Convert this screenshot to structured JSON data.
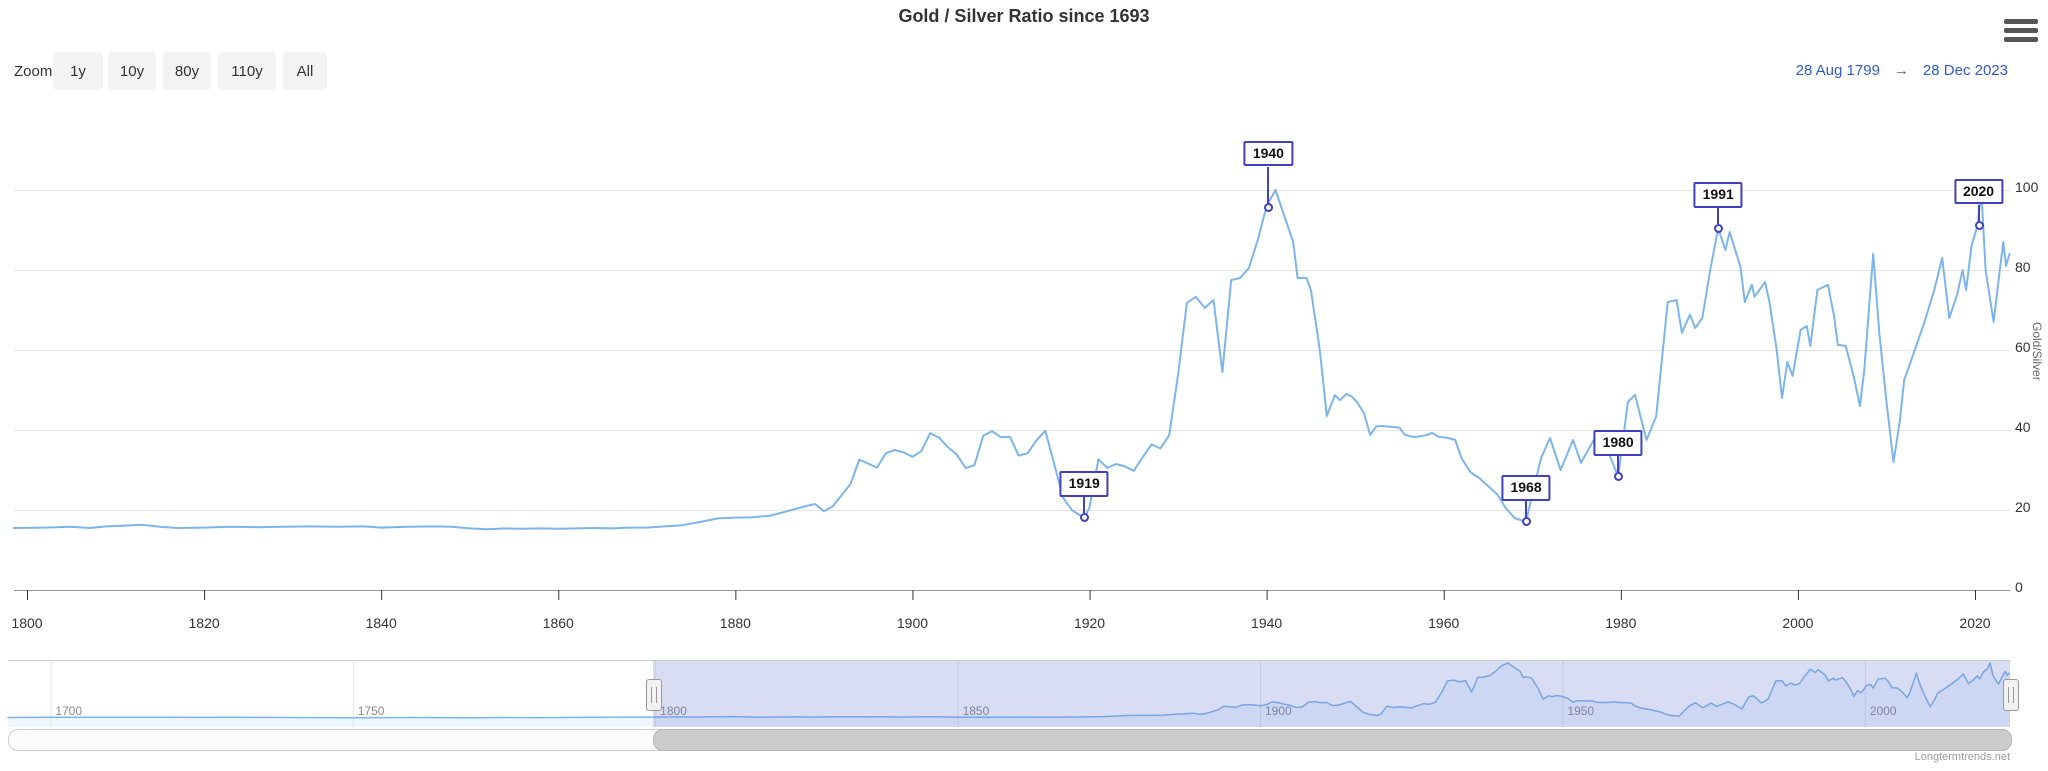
{
  "header": {
    "title": "Gold / Silver Ratio since 1693"
  },
  "range_selector": {
    "zoom_label": "Zoom",
    "buttons": [
      "1y",
      "10y",
      "80y",
      "110y",
      "All"
    ],
    "from_date": "28 Aug 1799",
    "arrow": "→",
    "to_date": "28 Dec 2023"
  },
  "watermark": "Longtermtrends.net",
  "colors": {
    "series": "#7cb5ec",
    "flag": "#4040c0",
    "grid": "#e6e6e6",
    "axis_line": "#999999",
    "nav_mask": "rgba(102,120,210,0.25)"
  },
  "chart_data": {
    "type": "line",
    "title": "Gold / Silver Ratio since 1693",
    "xlabel": "",
    "ylabel": "Gold/Silver",
    "legend": "none",
    "grid": "horizontal",
    "yaxis": {
      "min": 0,
      "max": 122,
      "ticks": [
        0,
        20,
        40,
        60,
        80,
        100
      ],
      "position": "right"
    },
    "xaxis": {
      "min": 1798.5,
      "max": 2024,
      "ticks": [
        1800,
        1820,
        1840,
        1860,
        1880,
        1900,
        1920,
        1940,
        1960,
        1980,
        2000,
        2020
      ]
    },
    "series": [
      {
        "name": "Gold/Silver Ratio",
        "points": [
          [
            1693,
            14.8
          ],
          [
            1700,
            15.1
          ],
          [
            1705,
            15.3
          ],
          [
            1710,
            15.2
          ],
          [
            1715,
            15.1
          ],
          [
            1720,
            15.2
          ],
          [
            1725,
            15.0
          ],
          [
            1730,
            15.1
          ],
          [
            1735,
            15.0
          ],
          [
            1740,
            14.9
          ],
          [
            1745,
            14.7
          ],
          [
            1750,
            14.6
          ],
          [
            1755,
            14.7
          ],
          [
            1760,
            14.9
          ],
          [
            1765,
            14.7
          ],
          [
            1770,
            14.6
          ],
          [
            1775,
            14.8
          ],
          [
            1780,
            14.7
          ],
          [
            1785,
            14.9
          ],
          [
            1790,
            15.1
          ],
          [
            1795,
            15.4
          ],
          [
            1798.5,
            15.5
          ],
          [
            1802,
            15.6
          ],
          [
            1805,
            15.8
          ],
          [
            1807,
            15.5
          ],
          [
            1809,
            15.9
          ],
          [
            1811,
            16.1
          ],
          [
            1813,
            16.3
          ],
          [
            1815,
            15.8
          ],
          [
            1817,
            15.5
          ],
          [
            1820,
            15.6
          ],
          [
            1823,
            15.8
          ],
          [
            1826,
            15.7
          ],
          [
            1829,
            15.8
          ],
          [
            1832,
            15.9
          ],
          [
            1835,
            15.8
          ],
          [
            1838,
            15.9
          ],
          [
            1840,
            15.6
          ],
          [
            1843,
            15.8
          ],
          [
            1846,
            15.9
          ],
          [
            1848,
            15.8
          ],
          [
            1850,
            15.4
          ],
          [
            1852,
            15.2
          ],
          [
            1854,
            15.4
          ],
          [
            1856,
            15.3
          ],
          [
            1858,
            15.4
          ],
          [
            1860,
            15.3
          ],
          [
            1862,
            15.4
          ],
          [
            1864,
            15.5
          ],
          [
            1866,
            15.4
          ],
          [
            1868,
            15.6
          ],
          [
            1870,
            15.6
          ],
          [
            1872,
            15.9
          ],
          [
            1874,
            16.2
          ],
          [
            1876,
            17.0
          ],
          [
            1878,
            17.9
          ],
          [
            1880,
            18.1
          ],
          [
            1882,
            18.2
          ],
          [
            1884,
            18.6
          ],
          [
            1886,
            19.8
          ],
          [
            1888,
            21.0
          ],
          [
            1889,
            21.5
          ],
          [
            1890,
            19.7
          ],
          [
            1891,
            20.9
          ],
          [
            1892,
            23.7
          ],
          [
            1893,
            26.5
          ],
          [
            1894,
            32.6
          ],
          [
            1895,
            31.6
          ],
          [
            1896,
            30.6
          ],
          [
            1897,
            34.2
          ],
          [
            1898,
            35.0
          ],
          [
            1899,
            34.4
          ],
          [
            1900,
            33.3
          ],
          [
            1901,
            34.7
          ],
          [
            1902,
            39.2
          ],
          [
            1903,
            38.1
          ],
          [
            1904,
            35.7
          ],
          [
            1905,
            33.9
          ],
          [
            1906,
            30.5
          ],
          [
            1907,
            31.2
          ],
          [
            1908,
            38.6
          ],
          [
            1909,
            39.7
          ],
          [
            1910,
            38.2
          ],
          [
            1911,
            38.3
          ],
          [
            1912,
            33.6
          ],
          [
            1913,
            34.2
          ],
          [
            1914,
            37.4
          ],
          [
            1915,
            39.8
          ],
          [
            1916,
            31.6
          ],
          [
            1917,
            23.1
          ],
          [
            1918,
            20.0
          ],
          [
            1919.4,
            18.0
          ],
          [
            1920,
            20.6
          ],
          [
            1921,
            32.7
          ],
          [
            1922,
            30.5
          ],
          [
            1923,
            31.5
          ],
          [
            1924,
            30.9
          ],
          [
            1925,
            29.8
          ],
          [
            1926,
            33.2
          ],
          [
            1927,
            36.4
          ],
          [
            1928,
            35.4
          ],
          [
            1929,
            38.7
          ],
          [
            1930,
            53.9
          ],
          [
            1931,
            71.8
          ],
          [
            1932,
            73.3
          ],
          [
            1933,
            70.5
          ],
          [
            1934,
            72.5
          ],
          [
            1935,
            54.5
          ],
          [
            1936,
            77.5
          ],
          [
            1937,
            78.0
          ],
          [
            1938,
            80.5
          ],
          [
            1939,
            87.5
          ],
          [
            1940,
            96.0
          ],
          [
            1941,
            100.0
          ],
          [
            1942,
            93.5
          ],
          [
            1943,
            87.0
          ],
          [
            1943.5,
            78.0
          ],
          [
            1944.5,
            78.0
          ],
          [
            1945,
            75.0
          ],
          [
            1946,
            60.0
          ],
          [
            1946.8,
            43.5
          ],
          [
            1947.7,
            48.7
          ],
          [
            1948.3,
            47.5
          ],
          [
            1949,
            49.0
          ],
          [
            1949.6,
            48.4
          ],
          [
            1950.2,
            47.0
          ],
          [
            1951,
            44.2
          ],
          [
            1951.7,
            38.8
          ],
          [
            1952.4,
            40.9
          ],
          [
            1953,
            41.0
          ],
          [
            1954,
            40.8
          ],
          [
            1955,
            40.6
          ],
          [
            1955.6,
            38.8
          ],
          [
            1956.5,
            38.3
          ],
          [
            1957,
            38.3
          ],
          [
            1958.2,
            38.8
          ],
          [
            1958.7,
            39.3
          ],
          [
            1959.4,
            38.3
          ],
          [
            1960.5,
            38.0
          ],
          [
            1961.3,
            37.5
          ],
          [
            1962,
            33.0
          ],
          [
            1963,
            29.5
          ],
          [
            1964,
            28.0
          ],
          [
            1965,
            26.0
          ],
          [
            1966,
            24.0
          ],
          [
            1967,
            20.5
          ],
          [
            1968,
            18.0
          ],
          [
            1969.3,
            17.0
          ],
          [
            1970,
            24.0
          ],
          [
            1971,
            33.0
          ],
          [
            1972,
            38.0
          ],
          [
            1973.2,
            30.0
          ],
          [
            1974.6,
            37.5
          ],
          [
            1975.5,
            31.8
          ],
          [
            1977.4,
            39.3
          ],
          [
            1978.5,
            35.0
          ],
          [
            1979.7,
            28.3
          ],
          [
            1980.8,
            47.0
          ],
          [
            1981.6,
            48.8
          ],
          [
            1982.9,
            37.5
          ],
          [
            1984,
            43.4
          ],
          [
            1985.3,
            72.0
          ],
          [
            1986.3,
            72.5
          ],
          [
            1986.9,
            64.3
          ],
          [
            1987.8,
            68.8
          ],
          [
            1988.4,
            65.5
          ],
          [
            1989.2,
            68.0
          ],
          [
            1990.1,
            80.0
          ],
          [
            1991,
            90.5
          ],
          [
            1991.8,
            85.0
          ],
          [
            1992.3,
            89.5
          ],
          [
            1993.5,
            80.8
          ],
          [
            1994,
            72.0
          ],
          [
            1994.8,
            76.3
          ],
          [
            1995.1,
            73.3
          ],
          [
            1996.3,
            77.0
          ],
          [
            1996.8,
            71.8
          ],
          [
            1997.6,
            60.0
          ],
          [
            1998.2,
            48.0
          ],
          [
            1998.8,
            57.0
          ],
          [
            1999.4,
            53.5
          ],
          [
            2000.3,
            65.0
          ],
          [
            2001,
            66.0
          ],
          [
            2001.4,
            61.0
          ],
          [
            2002.2,
            75.0
          ],
          [
            2003.4,
            76.3
          ],
          [
            2004.1,
            68.3
          ],
          [
            2004.5,
            61.3
          ],
          [
            2005.4,
            61.0
          ],
          [
            2006.3,
            53.4
          ],
          [
            2007,
            46.0
          ],
          [
            2007.5,
            55.0
          ],
          [
            2008.5,
            84.0
          ],
          [
            2009.2,
            64.0
          ],
          [
            2010,
            47.0
          ],
          [
            2010.8,
            32.0
          ],
          [
            2011.5,
            42.0
          ],
          [
            2012,
            52.5
          ],
          [
            2013.2,
            60.0
          ],
          [
            2014.3,
            67.0
          ],
          [
            2015.4,
            75.0
          ],
          [
            2016.3,
            83.0
          ],
          [
            2017.1,
            68.0
          ],
          [
            2018,
            74.0
          ],
          [
            2018.6,
            80.0
          ],
          [
            2019,
            75.0
          ],
          [
            2019.6,
            86.0
          ],
          [
            2020.3,
            91.3
          ],
          [
            2020.7,
            100.3
          ],
          [
            2021.2,
            80.0
          ],
          [
            2022.1,
            67.0
          ],
          [
            2022.8,
            80.0
          ],
          [
            2023.2,
            87.0
          ],
          [
            2023.5,
            81.0
          ],
          [
            2023.9,
            84.0
          ]
        ]
      }
    ],
    "flags": [
      {
        "label": "1919",
        "year": 1919.4,
        "value": 18.2
      },
      {
        "label": "1940",
        "year": 1940.2,
        "value": 95.8
      },
      {
        "label": "1968",
        "year": 1969.3,
        "value": 17.2
      },
      {
        "label": "1980",
        "year": 1979.7,
        "value": 28.4
      },
      {
        "label": "1991",
        "year": 1991.0,
        "value": 90.5
      },
      {
        "label": "2020",
        "year": 2020.4,
        "value": 91.3
      }
    ],
    "navigator": {
      "xmin": 1693,
      "xmax": 2024,
      "ticks": [
        1700,
        1750,
        1800,
        1850,
        1900,
        1950,
        2000
      ],
      "selected_from": 1799.66,
      "selected_to": 2024
    }
  }
}
